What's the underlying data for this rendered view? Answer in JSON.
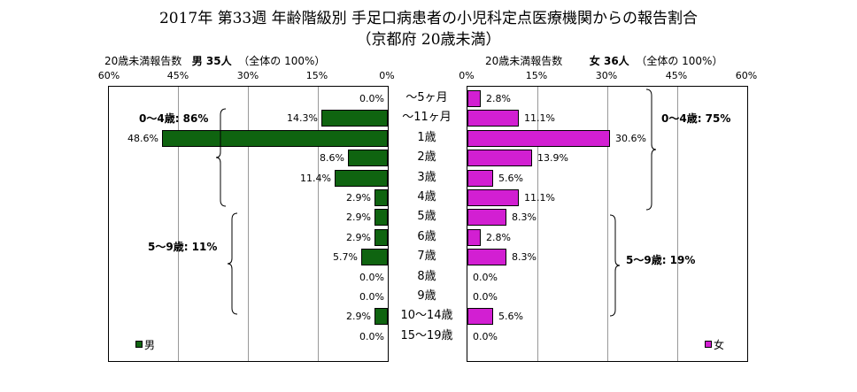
{
  "title_line1": "2017年 第33週 年齢階級別 手足口病患者の小児科定点医療機関からの報告割合",
  "title_line2": "（京都府 20歳未満）",
  "male_header": {
    "label": "20歳未満報告数",
    "sex_count": "男 35人",
    "note": "（全体の 100%）"
  },
  "female_header": {
    "label": "20歳未満報告数",
    "sex_count": "女 36人",
    "note": "（全体の 100%）"
  },
  "axis_ticks_male": [
    "60%",
    "45%",
    "30%",
    "15%",
    "0%"
  ],
  "axis_ticks_female": [
    "0%",
    "15%",
    "30%",
    "45%",
    "60%"
  ],
  "group_labels_male": [
    "0～4歳: 86%",
    "5～9歳: 11%"
  ],
  "group_labels_female": [
    "0～4歳: 75%",
    "5～9歳: 19%"
  ],
  "legend_male": "男",
  "legend_female": "女",
  "colors": {
    "male": "#0f6410",
    "female": "#d21fd2"
  },
  "chart_data": {
    "type": "bar",
    "orientation": "horizontal-butterfly",
    "categories": [
      "～5ヶ月",
      "～11ヶ月",
      "1歳",
      "2歳",
      "3歳",
      "4歳",
      "5歳",
      "6歳",
      "7歳",
      "8歳",
      "9歳",
      "10～14歳",
      "15～19歳"
    ],
    "series": [
      {
        "name": "男",
        "values": [
          0.0,
          14.3,
          48.6,
          8.6,
          11.4,
          2.9,
          2.9,
          2.9,
          5.7,
          0.0,
          0.0,
          2.9,
          0.0
        ],
        "labels": [
          "0.0%",
          "14.3%",
          "48.6%",
          "8.6%",
          "11.4%",
          "2.9%",
          "2.9%",
          "2.9%",
          "5.7%",
          "0.0%",
          "0.0%",
          "2.9%",
          "0.0%"
        ]
      },
      {
        "name": "女",
        "values": [
          2.8,
          11.1,
          30.6,
          13.9,
          5.6,
          11.1,
          8.3,
          2.8,
          8.3,
          0.0,
          0.0,
          5.6,
          0.0
        ],
        "labels": [
          "2.8%",
          "11.1%",
          "30.6%",
          "13.9%",
          "5.6%",
          "11.1%",
          "8.3%",
          "2.8%",
          "8.3%",
          "0.0%",
          "0.0%",
          "5.6%",
          "0.0%"
        ]
      }
    ],
    "xlim": [
      0,
      60
    ],
    "xunit": "%",
    "grid": true
  }
}
